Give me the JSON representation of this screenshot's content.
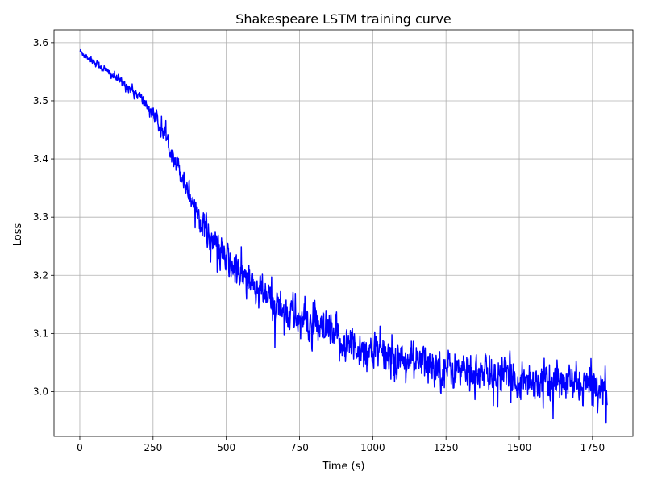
{
  "chart_data": {
    "type": "line",
    "title": "Shakespeare LSTM training curve",
    "xlabel": "Time (s)",
    "ylabel": "Loss",
    "xlim": [
      -88,
      1888
    ],
    "ylim": [
      2.923,
      3.622
    ],
    "grid": true,
    "legend": "none",
    "x_ticks": [
      0,
      250,
      500,
      750,
      1000,
      1250,
      1500,
      1750
    ],
    "x_tick_labels": [
      "0",
      "250",
      "500",
      "750",
      "1000",
      "1250",
      "1500",
      "1750"
    ],
    "y_ticks": [
      3.0,
      3.1,
      3.2,
      3.3,
      3.4,
      3.5,
      3.6
    ],
    "y_tick_labels": [
      "3.0",
      "3.1",
      "3.2",
      "3.3",
      "3.4",
      "3.5",
      "3.6"
    ],
    "series": [
      {
        "color": "#0000ff",
        "trend": {
          "x": [
            0,
            100,
            200,
            250,
            300,
            350,
            400,
            450,
            500,
            600,
            700,
            800,
            900,
            1000,
            1100,
            1200,
            1300,
            1400,
            1500,
            1600,
            1700,
            1800
          ],
          "y": [
            3.585,
            3.548,
            3.51,
            3.478,
            3.43,
            3.37,
            3.31,
            3.262,
            3.225,
            3.175,
            3.14,
            3.11,
            3.085,
            3.068,
            3.055,
            3.045,
            3.035,
            3.028,
            3.022,
            3.016,
            3.012,
            3.008
          ]
        },
        "noise": {
          "x": [
            0,
            200,
            300,
            400,
            500,
            700,
            900,
            1100,
            1300,
            1500,
            1800
          ],
          "amplitude": [
            0.003,
            0.005,
            0.008,
            0.012,
            0.016,
            0.018,
            0.018,
            0.017,
            0.017,
            0.017,
            0.017
          ]
        }
      }
    ]
  }
}
